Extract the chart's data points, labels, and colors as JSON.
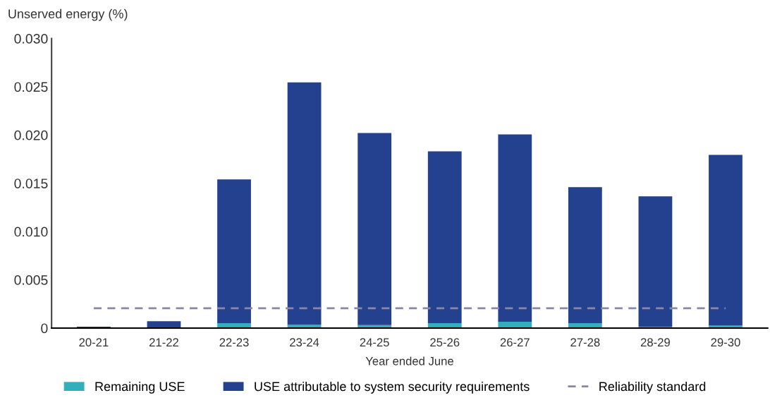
{
  "chart_data": {
    "type": "bar",
    "stacked": true,
    "ylabel": "Unserved energy (%)",
    "xlabel": "Year ended June",
    "categories": [
      "20-21",
      "21-22",
      "22-23",
      "23-24",
      "24-25",
      "25-26",
      "26-27",
      "27-28",
      "28-29",
      "29-30"
    ],
    "series": [
      {
        "name": "Remaining USE",
        "color": "#33aebb",
        "values": [
          0,
          0,
          0.0005,
          0.00035,
          0.0003,
          0.0005,
          0.00066,
          0.0005,
          0.00015,
          0.00025
        ]
      },
      {
        "name": "USE attributable to system security requirements",
        "color": "#24418f",
        "values": [
          0.00015,
          0.0007,
          0.0149,
          0.0251,
          0.0199,
          0.0178,
          0.0194,
          0.0141,
          0.0135,
          0.0177
        ]
      }
    ],
    "ref_lines": [
      {
        "axis": "y",
        "value": 0.00205,
        "label": "Reliability standard",
        "color": "#8a86a8",
        "line_style": "dashed"
      }
    ],
    "ylim": [
      0,
      0.03
    ],
    "yticks": [
      {
        "value": 0,
        "label": "0"
      },
      {
        "value": 0.005,
        "label": "0.005"
      },
      {
        "value": 0.01,
        "label": "0.010"
      },
      {
        "value": 0.015,
        "label": "0.015"
      },
      {
        "value": 0.02,
        "label": "0.020"
      },
      {
        "value": 0.025,
        "label": "0.025"
      },
      {
        "value": 0.03,
        "label": "0.030"
      }
    ],
    "grid": false,
    "legend": "bottom"
  }
}
